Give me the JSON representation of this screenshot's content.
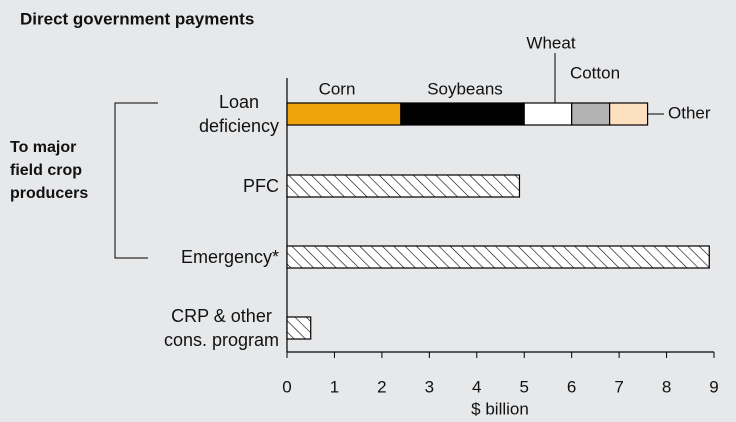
{
  "chart_data": {
    "type": "bar",
    "orientation": "horizontal",
    "title": "Direct government payments",
    "group_label": "To major\nfield crop\nproducers",
    "categories": [
      "Loan\ndeficiency",
      "PFC",
      "Emergency*",
      "CRP & other\ncons. program"
    ],
    "values": [
      null,
      4.9,
      8.9,
      0.5
    ],
    "series": [
      {
        "name": "Corn",
        "color": "#f0a30a",
        "values": [
          2.4,
          null,
          null,
          null
        ]
      },
      {
        "name": "Soybeans",
        "color": "#000000",
        "values": [
          2.6,
          null,
          null,
          null
        ]
      },
      {
        "name": "Wheat",
        "color": "#ffffff",
        "values": [
          1.0,
          null,
          null,
          null
        ]
      },
      {
        "name": "Cotton",
        "color": "#b3b3b3",
        "values": [
          0.8,
          null,
          null,
          null
        ]
      },
      {
        "name": "Other",
        "color": "#fde0c0",
        "values": [
          0.8,
          null,
          null,
          null
        ]
      }
    ],
    "xlabel": "$ billion",
    "xlim": [
      0,
      9
    ],
    "xticks": [
      0,
      1,
      2,
      3,
      4,
      5,
      6,
      7,
      8,
      9
    ]
  }
}
